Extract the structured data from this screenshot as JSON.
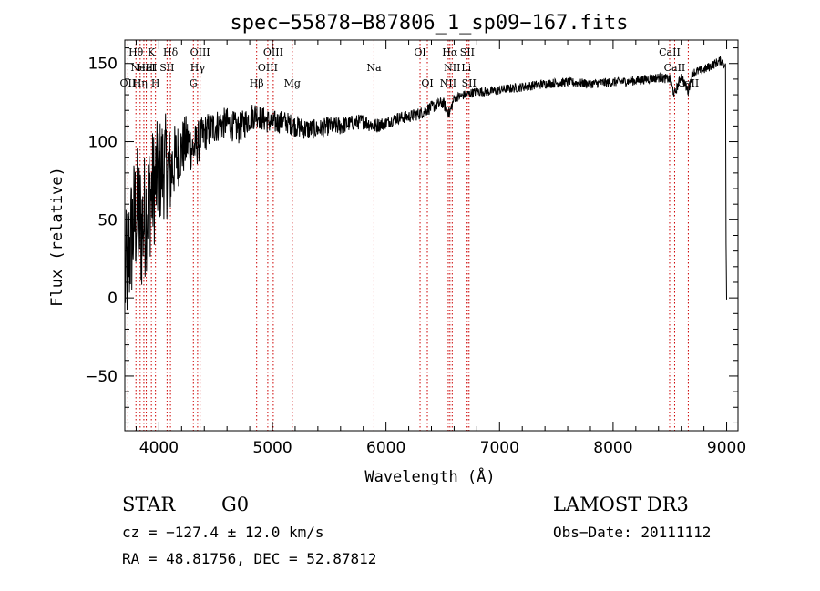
{
  "chart_data": {
    "type": "line",
    "title": "spec−55878−B87806_1_sp09−167.fits",
    "xlabel": "Wavelength (Å)",
    "ylabel": "Flux (relative)",
    "xlim": [
      3700,
      9100
    ],
    "ylim": [
      -85,
      165
    ],
    "xticks": [
      {
        "value": 4000,
        "label": "4000"
      },
      {
        "value": 5000,
        "label": "5000"
      },
      {
        "value": 6000,
        "label": "6000"
      },
      {
        "value": 7000,
        "label": "7000"
      },
      {
        "value": 8000,
        "label": "8000"
      },
      {
        "value": 9000,
        "label": "9000"
      }
    ],
    "yticks": [
      {
        "value": -50,
        "label": "−50"
      },
      {
        "value": 0,
        "label": "0"
      },
      {
        "value": 50,
        "label": "50"
      },
      {
        "value": 100,
        "label": "100"
      },
      {
        "value": 150,
        "label": "150"
      }
    ],
    "spectrum": {
      "x": [
        3700,
        3750,
        3800,
        3850,
        3900,
        3950,
        4000,
        4050,
        4100,
        4150,
        4200,
        4250,
        4300,
        4350,
        4400,
        4450,
        4500,
        4600,
        4700,
        4800,
        4860,
        4900,
        5000,
        5100,
        5200,
        5300,
        5400,
        5500,
        5600,
        5700,
        5800,
        5900,
        6000,
        6100,
        6200,
        6300,
        6400,
        6500,
        6560,
        6600,
        6700,
        6800,
        6900,
        7000,
        7200,
        7400,
        7600,
        7800,
        8000,
        8200,
        8400,
        8500,
        8540,
        8600,
        8660,
        8700,
        8800,
        8900,
        8950,
        9000
      ],
      "y": [
        10,
        35,
        55,
        45,
        60,
        70,
        80,
        85,
        80,
        90,
        95,
        100,
        95,
        100,
        105,
        108,
        110,
        112,
        108,
        115,
        118,
        115,
        112,
        113,
        110,
        108,
        108,
        110,
        110,
        112,
        113,
        110,
        112,
        115,
        116,
        118,
        122,
        125,
        118,
        128,
        130,
        132,
        132,
        133,
        135,
        137,
        138,
        137,
        138,
        139,
        141,
        140,
        130,
        142,
        132,
        144,
        146,
        150,
        152,
        148
      ],
      "noise": [
        40,
        45,
        45,
        45,
        40,
        40,
        35,
        35,
        30,
        22,
        20,
        18,
        15,
        14,
        12,
        12,
        11,
        10,
        10,
        9,
        9,
        8,
        8,
        7,
        7,
        7,
        6,
        6,
        6,
        5,
        5,
        5,
        4,
        4,
        4,
        4,
        4,
        4,
        4,
        3,
        3,
        3,
        3,
        3,
        3,
        3,
        3,
        3,
        3,
        3,
        3,
        3,
        3,
        3,
        3,
        3,
        3,
        3,
        3,
        3
      ]
    },
    "lines": [
      {
        "wavelength": 3727,
        "label": "OII",
        "row": 3
      },
      {
        "wavelength": 3798,
        "label": "Hθ",
        "row": 1
      },
      {
        "wavelength": 3835,
        "label": "Hη",
        "row": 3
      },
      {
        "wavelength": 3868,
        "label": "NeIII",
        "row": 2
      },
      {
        "wavelength": 3889,
        "label": "HeI",
        "row": 2
      },
      {
        "wavelength": 3934,
        "label": "K",
        "row": 1
      },
      {
        "wavelength": 3970,
        "label": "H",
        "row": 3
      },
      {
        "wavelength": 4072,
        "label": "SII",
        "row": 2
      },
      {
        "wavelength": 4102,
        "label": "Hδ",
        "row": 1
      },
      {
        "wavelength": 4304,
        "label": "G",
        "row": 3
      },
      {
        "wavelength": 4341,
        "label": "Hγ",
        "row": 2
      },
      {
        "wavelength": 4363,
        "label": "OIII",
        "row": 1
      },
      {
        "wavelength": 4861,
        "label": "Hβ",
        "row": 3
      },
      {
        "wavelength": 4959,
        "label": "OIII",
        "row": 2
      },
      {
        "wavelength": 5007,
        "label": "OIII",
        "row": 1
      },
      {
        "wavelength": 5175,
        "label": "Mg",
        "row": 3
      },
      {
        "wavelength": 5894,
        "label": "Na",
        "row": 2
      },
      {
        "wavelength": 6300,
        "label": "OI",
        "row": 1
      },
      {
        "wavelength": 6364,
        "label": "OI",
        "row": 3
      },
      {
        "wavelength": 6548,
        "label": "NII",
        "row": 3
      },
      {
        "wavelength": 6563,
        "label": "Hα",
        "row": 1
      },
      {
        "wavelength": 6583,
        "label": "NII",
        "row": 2
      },
      {
        "wavelength": 6707,
        "label": "Li",
        "row": 2
      },
      {
        "wavelength": 6716,
        "label": "SII",
        "row": 1
      },
      {
        "wavelength": 6731,
        "label": "SII",
        "row": 3
      },
      {
        "wavelength": 8498,
        "label": "CaII",
        "row": 1
      },
      {
        "wavelength": 8542,
        "label": "CaII",
        "row": 2
      },
      {
        "wavelength": 8662,
        "label": "CaII",
        "row": 3
      }
    ]
  },
  "info": {
    "class": "STAR",
    "subclass": "G0",
    "survey": "LAMOST DR3",
    "cz": "cz = −127.4 ± 12.0 km/s",
    "obs_date": "Obs−Date: 20111112",
    "coords": "RA =  48.81756, DEC =  52.87812"
  },
  "colors": {
    "spectrum": "#000000",
    "line_markers": "#cc0000",
    "axes": "#000000"
  }
}
